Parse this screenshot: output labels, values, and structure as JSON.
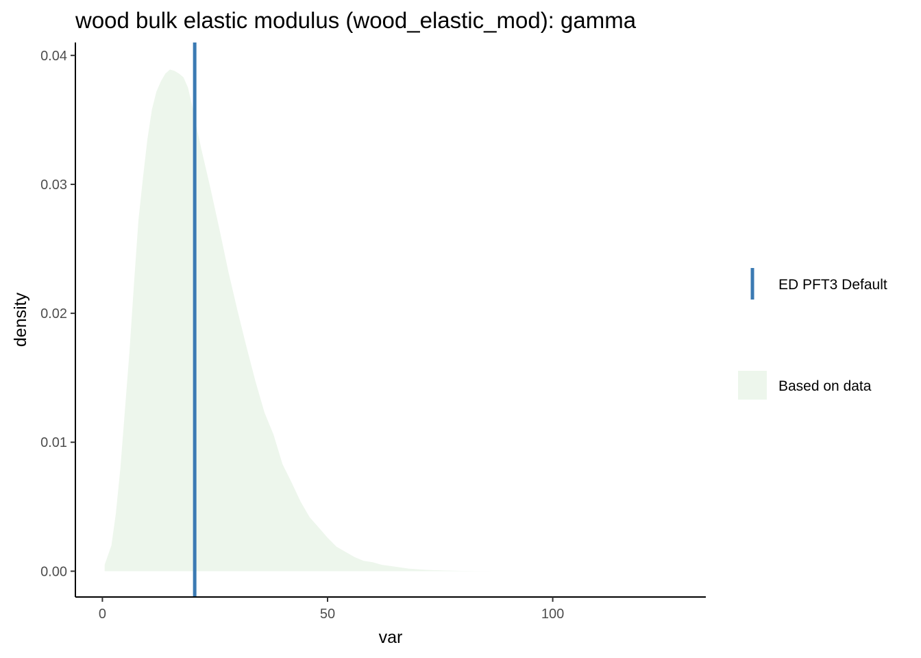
{
  "chart_data": {
    "type": "area",
    "title": "wood bulk elastic modulus (wood_elastic_mod): gamma",
    "xlabel": "var",
    "ylabel": "density",
    "xlim": [
      -6,
      134
    ],
    "ylim": [
      -0.002,
      0.041
    ],
    "x_ticks": [
      {
        "value": 0,
        "label": "0"
      },
      {
        "value": 50,
        "label": "50"
      },
      {
        "value": 100,
        "label": "100"
      }
    ],
    "y_ticks": [
      {
        "value": 0.0,
        "label": "0.00"
      },
      {
        "value": 0.01,
        "label": "0.01"
      },
      {
        "value": 0.02,
        "label": "0.02"
      },
      {
        "value": 0.03,
        "label": "0.03"
      },
      {
        "value": 0.04,
        "label": "0.04"
      }
    ],
    "grid": false,
    "legend_position": "right",
    "series": [
      {
        "name": "Based on data",
        "kind": "density-area",
        "color": "#edf6ec",
        "x": [
          0.5,
          1,
          2,
          3,
          4,
          5,
          6,
          7,
          8,
          9,
          10,
          11,
          12,
          13,
          14,
          15,
          16,
          17,
          18,
          19,
          20,
          21,
          22,
          24,
          26,
          28,
          30,
          32,
          34,
          36,
          38,
          40,
          42,
          44,
          46,
          48,
          50,
          52,
          54,
          56,
          58,
          60,
          62,
          65,
          68,
          72,
          76,
          80,
          84,
          87
        ],
        "y": [
          0.0005,
          0.001,
          0.002,
          0.0045,
          0.008,
          0.0125,
          0.017,
          0.0222,
          0.0272,
          0.0305,
          0.0335,
          0.0358,
          0.0372,
          0.038,
          0.0386,
          0.0389,
          0.0388,
          0.0386,
          0.0383,
          0.0375,
          0.036,
          0.0343,
          0.0327,
          0.0297,
          0.0265,
          0.0232,
          0.0202,
          0.0174,
          0.0147,
          0.0123,
          0.0106,
          0.0083,
          0.0069,
          0.0054,
          0.0042,
          0.0034,
          0.0026,
          0.0019,
          0.0015,
          0.0011,
          0.0008,
          0.0007,
          0.0005,
          0.00035,
          0.0002,
          0.0001,
          5e-05,
          2e-05,
          1e-05,
          0.0
        ]
      }
    ],
    "vlines": [
      {
        "name": "ED PFT3 Default",
        "x": 20.5,
        "color": "#3b7ab3"
      }
    ]
  }
}
